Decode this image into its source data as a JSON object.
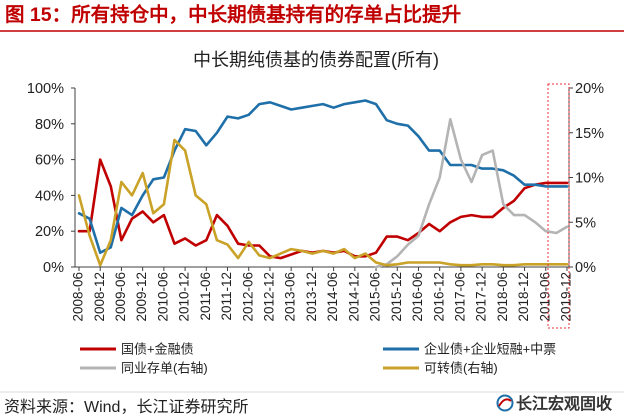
{
  "header": {
    "caption": "图 15：所有持仓中，中长期债基持有的存单占比提升"
  },
  "chart_data": {
    "type": "line",
    "title": "中长期纯债基的债券配置(所有)",
    "x": [
      "2008-06",
      "2008-09",
      "2008-12",
      "2009-03",
      "2009-06",
      "2009-09",
      "2009-12",
      "2010-03",
      "2010-06",
      "2010-09",
      "2010-12",
      "2011-03",
      "2011-06",
      "2011-09",
      "2011-12",
      "2012-03",
      "2012-06",
      "2012-09",
      "2012-12",
      "2013-03",
      "2013-06",
      "2013-09",
      "2013-12",
      "2014-03",
      "2014-06",
      "2014-09",
      "2014-12",
      "2015-03",
      "2015-06",
      "2015-09",
      "2015-12",
      "2016-03",
      "2016-06",
      "2016-09",
      "2016-12",
      "2017-03",
      "2017-06",
      "2017-09",
      "2017-12",
      "2018-03",
      "2018-06",
      "2018-09",
      "2018-12",
      "2019-03",
      "2019-06",
      "2019-09",
      "2019-12"
    ],
    "x_tick_labels": [
      "2008-06",
      "2008-12",
      "2009-06",
      "2009-12",
      "2010-06",
      "2010-12",
      "2011-06",
      "2011-12",
      "2012-06",
      "2012-12",
      "2013-06",
      "2013-12",
      "2014-06",
      "2014-12",
      "2015-06",
      "2015-12",
      "2016-06",
      "2016-12",
      "2017-06",
      "2017-12",
      "2018-06",
      "2018-12",
      "2019-06",
      "2019-12"
    ],
    "y_left": {
      "ylim": [
        0,
        100
      ],
      "tick_labels": [
        "0%",
        "20%",
        "40%",
        "60%",
        "80%",
        "100%"
      ]
    },
    "y_right": {
      "ylim": [
        0,
        20
      ],
      "tick_labels": [
        "0%",
        "5%",
        "10%",
        "15%",
        "20%"
      ]
    },
    "grid": false,
    "legend_position": "bottom",
    "series": [
      {
        "name": "国债+金融债",
        "right_axis": false,
        "color": "#c00000",
        "values": [
          20,
          20,
          60,
          45,
          15,
          27,
          31,
          25,
          29,
          13,
          16,
          12,
          15,
          29,
          23,
          13,
          12,
          12,
          6,
          5,
          7,
          9,
          8,
          9,
          8,
          9,
          6,
          6,
          8,
          17,
          17,
          15,
          19,
          24,
          20,
          25,
          28,
          29,
          28,
          28,
          33,
          37,
          44,
          46,
          47,
          47,
          47
        ]
      },
      {
        "name": "企业债+企业短融+中票",
        "right_axis": false,
        "color": "#1f6fa9",
        "values": [
          30,
          27,
          8,
          11,
          33,
          29,
          40,
          49,
          50,
          65,
          77,
          76,
          68,
          75,
          84,
          83,
          85,
          91,
          92,
          90,
          88,
          89,
          90,
          91,
          89,
          91,
          92,
          93,
          91,
          82,
          80,
          79,
          73,
          65,
          65,
          57,
          57,
          57,
          55,
          55,
          54,
          51,
          46,
          46,
          45,
          45,
          45
        ]
      },
      {
        "name": "同业存单(右轴)",
        "right_axis": true,
        "color": "#b4b4b4",
        "values": [
          null,
          null,
          null,
          null,
          null,
          null,
          null,
          null,
          null,
          null,
          null,
          null,
          null,
          null,
          null,
          null,
          null,
          null,
          null,
          null,
          null,
          null,
          null,
          null,
          null,
          null,
          null,
          null,
          0,
          0.3,
          1.2,
          2.5,
          3.5,
          7,
          10,
          16.5,
          12,
          9.5,
          12.5,
          13,
          7,
          5.8,
          5.8,
          5,
          4,
          3.8,
          4.5
        ]
      },
      {
        "name": "可转债(右轴)",
        "right_axis": true,
        "color": "#c9a227",
        "values": [
          8,
          3.5,
          0.2,
          3,
          9.5,
          8,
          10.5,
          6,
          7,
          14.2,
          13,
          8,
          7,
          3,
          2.5,
          1,
          2.8,
          1.3,
          1,
          1.5,
          2,
          1.8,
          1.5,
          1.8,
          1.5,
          2,
          1,
          1.5,
          0.5,
          0.2,
          0.3,
          0.5,
          0.5,
          0.5,
          0.5,
          0.3,
          0.2,
          0.2,
          0.3,
          0.3,
          0.2,
          0.2,
          0.3,
          0.3,
          0.3,
          0.3,
          0.3
        ]
      }
    ]
  },
  "footer": {
    "source": "资料来源：Wind，长江证券研究所",
    "logo_text": "长江宏观固收"
  },
  "colors": {
    "caption": "#c00000",
    "highlight_box": "#e8303a",
    "axis": "#404040"
  }
}
